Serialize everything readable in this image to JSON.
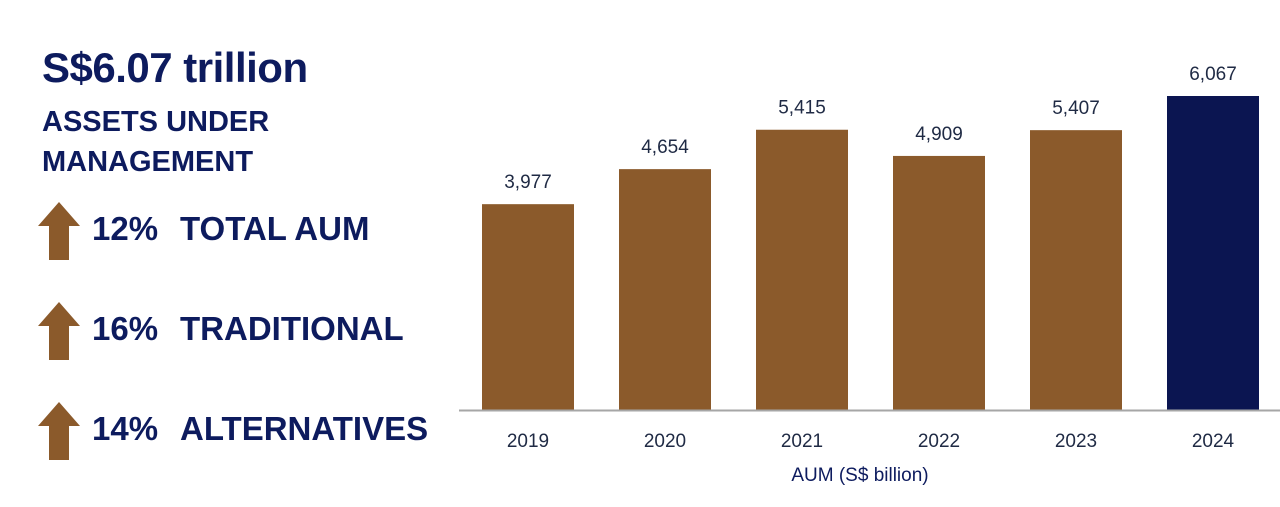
{
  "headline": {
    "value": "S$6.07 trillion",
    "subtitle": "ASSETS UNDER MANAGEMENT"
  },
  "metrics": [
    {
      "icon": "up-arrow-icon",
      "percent": "12%",
      "label": "TOTAL AUM"
    },
    {
      "icon": "up-arrow-icon",
      "percent": "16%",
      "label": "TRADITIONAL"
    },
    {
      "icon": "up-arrow-icon",
      "percent": "14%",
      "label": "ALTERNATIVES"
    }
  ],
  "colors": {
    "navy": "#0d1b5e",
    "brown": "#8b5a2b",
    "highlight": "#0b1551",
    "axis": "#a6a6a6",
    "text": "#1f2a44"
  },
  "chart_data": {
    "type": "bar",
    "title": "",
    "xlabel": "AUM (S$ billion)",
    "ylabel": "",
    "categories": [
      "2019",
      "2020",
      "2021",
      "2022",
      "2023",
      "2024"
    ],
    "values": [
      3977,
      4654,
      5415,
      4909,
      5407,
      6067
    ],
    "value_labels": [
      "3,977",
      "4,654",
      "5,415",
      "4,909",
      "5,407",
      "6,067"
    ],
    "highlight_category": "2024",
    "ylim": [
      0,
      6067
    ],
    "grid": false,
    "legend": "none"
  }
}
